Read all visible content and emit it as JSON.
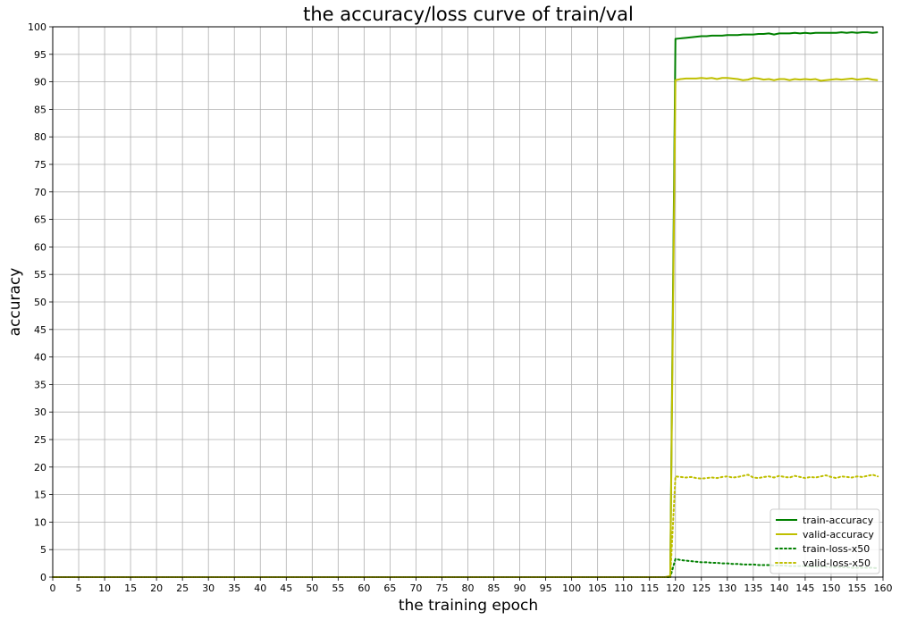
{
  "chart_data": {
    "type": "line",
    "title": "the accuracy/loss curve of train/val",
    "xlabel": "the training epoch",
    "ylabel": "accuracy",
    "xlim": [
      0,
      160
    ],
    "ylim": [
      0,
      100
    ],
    "xticks": [
      0,
      5,
      10,
      15,
      20,
      25,
      30,
      35,
      40,
      45,
      50,
      55,
      60,
      65,
      70,
      75,
      80,
      85,
      90,
      95,
      100,
      105,
      110,
      115,
      120,
      125,
      130,
      135,
      140,
      145,
      150,
      155,
      160
    ],
    "yticks": [
      0,
      5,
      10,
      15,
      20,
      25,
      30,
      35,
      40,
      45,
      50,
      55,
      60,
      65,
      70,
      75,
      80,
      85,
      90,
      95,
      100
    ],
    "grid": true,
    "legend_position": "lower-right",
    "series": [
      {
        "name": "train-accuracy",
        "color": "#008000",
        "style": "solid",
        "x": [
          0,
          119,
          120,
          121,
          122,
          123,
          124,
          125,
          126,
          127,
          128,
          129,
          130,
          131,
          132,
          133,
          134,
          135,
          136,
          137,
          138,
          139,
          140,
          141,
          142,
          143,
          144,
          145,
          146,
          147,
          148,
          149,
          150,
          151,
          152,
          153,
          154,
          155,
          156,
          157,
          158,
          159
        ],
        "y": [
          0,
          0,
          97.8,
          97.9,
          98.0,
          98.1,
          98.2,
          98.3,
          98.3,
          98.4,
          98.4,
          98.4,
          98.5,
          98.5,
          98.5,
          98.6,
          98.6,
          98.6,
          98.7,
          98.7,
          98.8,
          98.6,
          98.8,
          98.8,
          98.8,
          98.9,
          98.8,
          98.9,
          98.8,
          98.9,
          98.9,
          98.9,
          98.9,
          98.9,
          99.0,
          98.9,
          99.0,
          98.9,
          99.0,
          99.0,
          98.9,
          99.0
        ]
      },
      {
        "name": "valid-accuracy",
        "color": "#bfbf00",
        "style": "solid",
        "x": [
          0,
          118,
          119,
          120,
          121,
          122,
          123,
          124,
          125,
          126,
          127,
          128,
          129,
          130,
          131,
          132,
          133,
          134,
          135,
          136,
          137,
          138,
          139,
          140,
          141,
          142,
          143,
          144,
          145,
          146,
          147,
          148,
          149,
          150,
          151,
          152,
          153,
          154,
          155,
          156,
          157,
          158,
          159
        ],
        "y": [
          0,
          0,
          0.2,
          90.3,
          90.5,
          90.6,
          90.6,
          90.6,
          90.7,
          90.6,
          90.7,
          90.5,
          90.7,
          90.7,
          90.6,
          90.5,
          90.3,
          90.4,
          90.7,
          90.6,
          90.4,
          90.5,
          90.3,
          90.5,
          90.5,
          90.3,
          90.5,
          90.4,
          90.5,
          90.4,
          90.5,
          90.2,
          90.3,
          90.4,
          90.5,
          90.4,
          90.5,
          90.6,
          90.4,
          90.5,
          90.6,
          90.4,
          90.3
        ]
      },
      {
        "name": "train-loss-x50",
        "color": "#008000",
        "style": "dotted",
        "x": [
          0,
          119,
          120,
          121,
          122,
          123,
          124,
          125,
          126,
          127,
          128,
          129,
          130,
          131,
          132,
          133,
          134,
          135,
          136,
          137,
          138,
          139,
          140,
          141,
          142,
          143,
          144,
          145,
          146,
          147,
          148,
          149,
          150,
          151,
          152,
          153,
          154,
          155,
          156,
          157,
          158,
          159
        ],
        "y": [
          0,
          0,
          3.3,
          3.1,
          3.0,
          2.9,
          2.8,
          2.7,
          2.7,
          2.6,
          2.6,
          2.5,
          2.5,
          2.4,
          2.4,
          2.3,
          2.3,
          2.3,
          2.2,
          2.2,
          2.2,
          2.1,
          2.1,
          2.1,
          2.0,
          2.0,
          2.0,
          2.0,
          1.9,
          1.9,
          1.9,
          1.9,
          1.8,
          1.8,
          1.8,
          1.8,
          1.7,
          1.7,
          1.7,
          1.7,
          1.7,
          1.6
        ]
      },
      {
        "name": "valid-loss-x50",
        "color": "#bfbf00",
        "style": "dotted",
        "x": [
          0,
          119,
          120,
          121,
          122,
          123,
          124,
          125,
          126,
          127,
          128,
          129,
          130,
          131,
          132,
          133,
          134,
          135,
          136,
          137,
          138,
          139,
          140,
          141,
          142,
          143,
          144,
          145,
          146,
          147,
          148,
          149,
          150,
          151,
          152,
          153,
          154,
          155,
          156,
          157,
          158,
          159
        ],
        "y": [
          0,
          0,
          18.3,
          18.2,
          18.1,
          18.2,
          18.0,
          17.9,
          18.0,
          18.1,
          18.0,
          18.2,
          18.3,
          18.1,
          18.2,
          18.4,
          18.6,
          18.1,
          18.0,
          18.2,
          18.3,
          18.1,
          18.4,
          18.2,
          18.1,
          18.4,
          18.2,
          18.0,
          18.2,
          18.1,
          18.3,
          18.5,
          18.2,
          18.0,
          18.3,
          18.2,
          18.1,
          18.3,
          18.2,
          18.4,
          18.6,
          18.3
        ]
      }
    ]
  }
}
